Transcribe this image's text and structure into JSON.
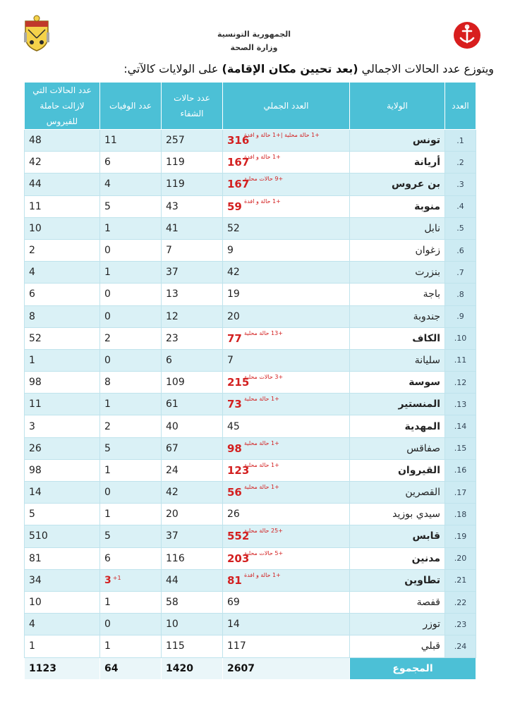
{
  "header": {
    "line1": "الجمهورية التونسية",
    "line2": "وزارة الصحة"
  },
  "intro": {
    "before": "ويتوزع عدد الحالات الاجمالي ",
    "bold": "(بعد تحيين مكان الإقامة)",
    "after": " على الولايات كالآتي:"
  },
  "columns": {
    "index": "العدد",
    "governorate": "الولاية",
    "total": "العدد الجملي",
    "recovered": "عدد حالات الشفاء",
    "deaths": "عدد الوفيات",
    "active": "عدد الحالات التي لازالت حاملة للفيروس"
  },
  "rows": [
    {
      "idx": "1.",
      "gov": "تونس",
      "bold": true,
      "total": "316",
      "red": true,
      "note": "+1 حالة محلية |+1 حالة و افدة",
      "recovered": "257",
      "deaths": "11",
      "active": "48"
    },
    {
      "idx": "2.",
      "gov": "أريانة",
      "bold": true,
      "total": "167",
      "red": true,
      "note": "+1 حالة و افدة",
      "recovered": "119",
      "deaths": "6",
      "active": "42"
    },
    {
      "idx": "3.",
      "gov": "بن عروس",
      "bold": true,
      "total": "167",
      "red": true,
      "note": "+9 حالات محلية",
      "recovered": "119",
      "deaths": "4",
      "active": "44"
    },
    {
      "idx": "4.",
      "gov": "منوبة",
      "bold": true,
      "total": "59",
      "red": true,
      "note": "+1 حالة و افدة",
      "recovered": "43",
      "deaths": "5",
      "active": "11"
    },
    {
      "idx": "5.",
      "gov": "نابل",
      "bold": false,
      "total": "52",
      "red": false,
      "note": "",
      "recovered": "41",
      "deaths": "1",
      "active": "10"
    },
    {
      "idx": "6.",
      "gov": "زغوان",
      "bold": false,
      "total": "9",
      "red": false,
      "note": "",
      "recovered": "7",
      "deaths": "0",
      "active": "2"
    },
    {
      "idx": "7.",
      "gov": "بنزرت",
      "bold": false,
      "total": "42",
      "red": false,
      "note": "",
      "recovered": "37",
      "deaths": "1",
      "active": "4"
    },
    {
      "idx": "8.",
      "gov": "باجة",
      "bold": false,
      "total": "19",
      "red": false,
      "note": "",
      "recovered": "13",
      "deaths": "0",
      "active": "6"
    },
    {
      "idx": "9.",
      "gov": "جندوبة",
      "bold": false,
      "total": "20",
      "red": false,
      "note": "",
      "recovered": "12",
      "deaths": "0",
      "active": "8"
    },
    {
      "idx": "10.",
      "gov": "الكاف",
      "bold": true,
      "total": "77",
      "red": true,
      "note": "+13 حالة محلية",
      "recovered": "23",
      "deaths": "2",
      "active": "52"
    },
    {
      "idx": "11.",
      "gov": "سليانة",
      "bold": false,
      "total": "7",
      "red": false,
      "note": "",
      "recovered": "6",
      "deaths": "0",
      "active": "1"
    },
    {
      "idx": "12.",
      "gov": "سوسة",
      "bold": true,
      "total": "215",
      "red": true,
      "note": "+3 حالات محلية",
      "recovered": "109",
      "deaths": "8",
      "active": "98"
    },
    {
      "idx": "13.",
      "gov": "المنستير",
      "bold": true,
      "total": "73",
      "red": true,
      "note": "+1 حالة محلية",
      "recovered": "61",
      "deaths": "1",
      "active": "11"
    },
    {
      "idx": "14.",
      "gov": "المهدية",
      "bold": true,
      "total": "45",
      "red": false,
      "note": "",
      "recovered": "40",
      "deaths": "2",
      "active": "3"
    },
    {
      "idx": "15.",
      "gov": "صفاقس",
      "bold": false,
      "total": "98",
      "red": true,
      "note": "+1 حالة محلية",
      "recovered": "67",
      "deaths": "5",
      "active": "26"
    },
    {
      "idx": "16.",
      "gov": "القيروان",
      "bold": true,
      "total": "123",
      "red": true,
      "note": "+1 حالة محلية",
      "recovered": "24",
      "deaths": "1",
      "active": "98"
    },
    {
      "idx": "17.",
      "gov": "القصرين",
      "bold": false,
      "total": "56",
      "red": true,
      "note": "+1 حالة محلية",
      "recovered": "42",
      "deaths": "0",
      "active": "14"
    },
    {
      "idx": "18.",
      "gov": "سيدي بوزيد",
      "bold": false,
      "total": "26",
      "red": false,
      "note": "",
      "recovered": "20",
      "deaths": "1",
      "active": "5"
    },
    {
      "idx": "19.",
      "gov": "قابس",
      "bold": true,
      "total": "552",
      "red": true,
      "note": "+25 حالة محلية",
      "recovered": "37",
      "deaths": "5",
      "active": "510"
    },
    {
      "idx": "20.",
      "gov": "مدنين",
      "bold": true,
      "total": "203",
      "red": true,
      "note": "+5 حالات محلية",
      "recovered": "116",
      "deaths": "6",
      "active": "81"
    },
    {
      "idx": "21.",
      "gov": "تطاوين",
      "bold": true,
      "total": "81",
      "red": true,
      "note": "+1 حالة و افدة",
      "recovered": "44",
      "deaths": "3",
      "deathsRed": true,
      "deathsNote": "+1",
      "active": "34"
    },
    {
      "idx": "22.",
      "gov": "قفصة",
      "bold": false,
      "total": "69",
      "red": false,
      "note": "",
      "recovered": "58",
      "deaths": "1",
      "active": "10"
    },
    {
      "idx": "23.",
      "gov": "توزر",
      "bold": false,
      "total": "14",
      "red": false,
      "note": "",
      "recovered": "10",
      "deaths": "0",
      "active": "4"
    },
    {
      "idx": "24.",
      "gov": "قبلي",
      "bold": false,
      "total": "117",
      "red": false,
      "note": "",
      "recovered": "115",
      "deaths": "1",
      "active": "1"
    }
  ],
  "summary": {
    "label": "المجموع",
    "total": "2607",
    "recovered": "1420",
    "deaths": "64",
    "active": "1123"
  },
  "colors": {
    "header_bg": "#4cc0d6",
    "row_tint": "#daf1f6",
    "highlight": "#d32020"
  },
  "icons": {
    "left": "tunisia-coat-of-arms-icon",
    "right": "red-crescent-anchor-icon"
  }
}
